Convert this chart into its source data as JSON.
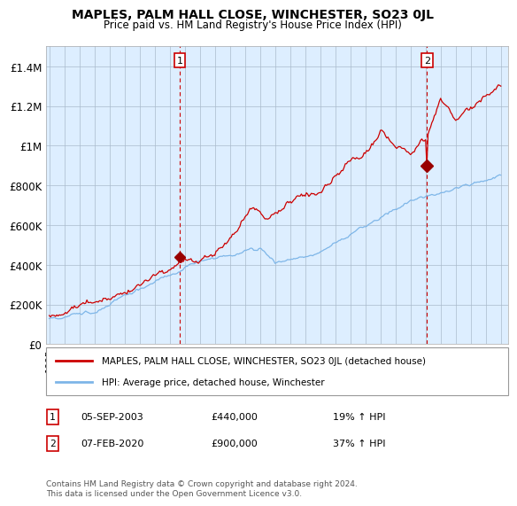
{
  "title": "MAPLES, PALM HALL CLOSE, WINCHESTER, SO23 0JL",
  "subtitle": "Price paid vs. HM Land Registry's House Price Index (HPI)",
  "ylabel_ticks": [
    "£0",
    "£200K",
    "£400K",
    "£600K",
    "£800K",
    "£1M",
    "£1.2M",
    "£1.4M"
  ],
  "ylabel_values": [
    0,
    200000,
    400000,
    600000,
    800000,
    1000000,
    1200000,
    1400000
  ],
  "ylim": [
    0,
    1500000
  ],
  "legend_line1": "MAPLES, PALM HALL CLOSE, WINCHESTER, SO23 0JL (detached house)",
  "legend_line2": "HPI: Average price, detached house, Winchester",
  "sale1_label": "1",
  "sale1_date": "05-SEP-2003",
  "sale1_price": "£440,000",
  "sale1_hpi": "19% ↑ HPI",
  "sale1_year": 2003.67,
  "sale1_value": 440000,
  "sale2_label": "2",
  "sale2_date": "07-FEB-2020",
  "sale2_price": "£900,000",
  "sale2_hpi": "37% ↑ HPI",
  "sale2_year": 2020.1,
  "sale2_value": 900000,
  "footer": "Contains HM Land Registry data © Crown copyright and database right 2024.\nThis data is licensed under the Open Government Licence v3.0.",
  "line_color_red": "#cc0000",
  "line_color_blue": "#7eb6e8",
  "vline_color": "#cc0000",
  "plot_bg_color": "#ddeeff",
  "background_color": "#ffffff",
  "grid_color": "#aabbcc",
  "marker_color": "#990000"
}
